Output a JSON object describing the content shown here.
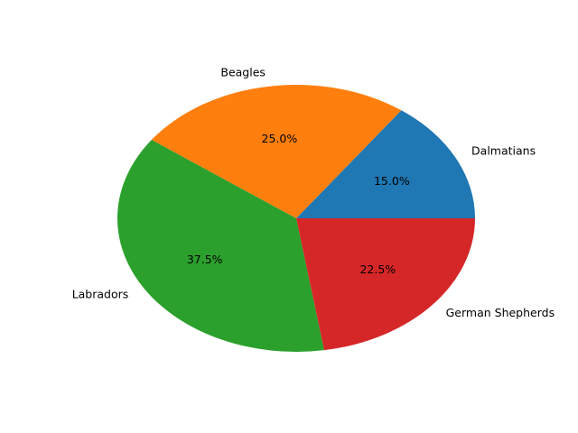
{
  "chart_data": {
    "type": "pie",
    "slices": [
      {
        "label": "Dalmatians",
        "value": 15.0,
        "pct_label": "15.0%",
        "color": "#1f77b4"
      },
      {
        "label": "Beagles",
        "value": 25.0,
        "pct_label": "25.0%",
        "color": "#ff7f0e"
      },
      {
        "label": "Labradors",
        "value": 37.5,
        "pct_label": "37.5%",
        "color": "#2ca02c"
      },
      {
        "label": "German Shepherds",
        "value": 22.5,
        "pct_label": "22.5%",
        "color": "#d62728"
      }
    ],
    "start_angle_deg": 0,
    "direction": "counterclockwise",
    "title": "",
    "legend": "none"
  }
}
